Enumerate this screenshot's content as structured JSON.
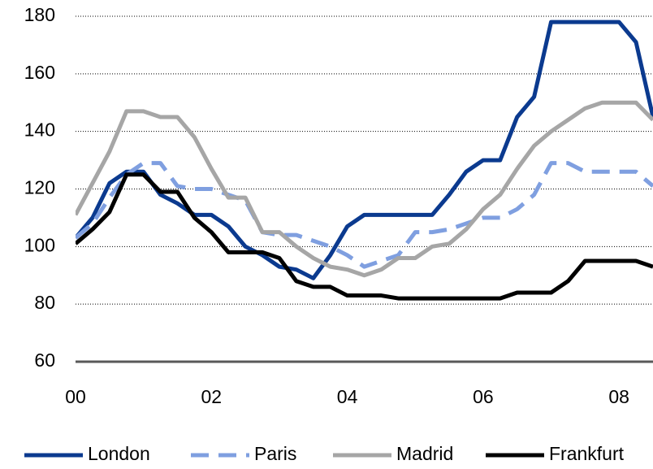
{
  "chart_data": {
    "type": "line",
    "x": [
      0,
      0.25,
      0.5,
      0.75,
      1,
      1.25,
      1.5,
      1.75,
      2,
      2.25,
      2.5,
      2.75,
      3,
      3.25,
      3.5,
      3.75,
      4,
      4.25,
      4.5,
      4.75,
      5,
      5.25,
      5.5,
      5.75,
      6,
      6.25,
      6.5,
      6.75,
      7,
      7.25,
      7.5,
      7.75,
      8,
      8.25,
      8.5
    ],
    "series": [
      {
        "name": "London",
        "color": "#0b3a8f",
        "label_color": "#0b3a8f",
        "dash": false,
        "values": [
          103,
          110,
          122,
          126,
          126,
          118,
          115,
          111,
          111,
          107,
          100,
          97,
          93,
          92,
          89,
          97,
          107,
          111,
          111,
          111,
          111,
          111,
          118,
          126,
          130,
          130,
          145,
          152,
          178,
          178,
          178,
          178,
          178,
          171,
          145
        ]
      },
      {
        "name": "Paris",
        "color": "#7f9fe0",
        "label_color": "#a6a6a6",
        "dash": true,
        "values": [
          103,
          108,
          117,
          125,
          129,
          129,
          121,
          120,
          120,
          118,
          116,
          105,
          104,
          104,
          102,
          100,
          97,
          93,
          95,
          97,
          105,
          105,
          106,
          108,
          110,
          110,
          113,
          118,
          129,
          129,
          126,
          126,
          126,
          126,
          121
        ]
      },
      {
        "name": "Madrid",
        "color": "#a6a6a6",
        "label_color": "#595959",
        "dash": false,
        "values": [
          111,
          122,
          133,
          147,
          147,
          145,
          145,
          138,
          127,
          117,
          117,
          105,
          105,
          100,
          96,
          93,
          92,
          90,
          92,
          96,
          96,
          100,
          101,
          106,
          113,
          118,
          127,
          135,
          140,
          144,
          148,
          150,
          150,
          150,
          144
        ]
      },
      {
        "name": "Frankfurt",
        "color": "#000000",
        "label_color": "#7f9fe0",
        "dash": false,
        "values": [
          101,
          106,
          112,
          125,
          125,
          119,
          119,
          110,
          105,
          98,
          98,
          98,
          96,
          88,
          86,
          86,
          83,
          83,
          83,
          82,
          82,
          82,
          82,
          82,
          82,
          82,
          84,
          84,
          84,
          88,
          95,
          95,
          95,
          95,
          93
        ]
      }
    ],
    "xlim": [
      0,
      8.5
    ],
    "xticks": [
      {
        "value": 0,
        "label": "00"
      },
      {
        "value": 2,
        "label": "02"
      },
      {
        "value": 4,
        "label": "04"
      },
      {
        "value": 6,
        "label": "06"
      },
      {
        "value": 8,
        "label": "08"
      }
    ],
    "ylim": [
      60,
      180
    ],
    "yticks": [
      60,
      80,
      100,
      120,
      140,
      160,
      180
    ],
    "grid": true,
    "legend": "bottom"
  }
}
